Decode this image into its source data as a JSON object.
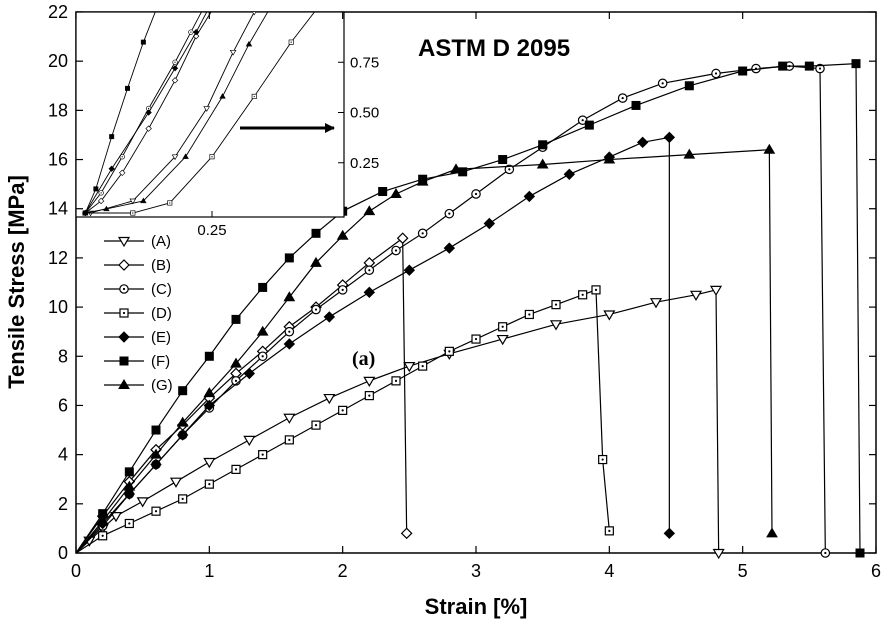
{
  "chart_data": {
    "type": "line",
    "title": "ASTM D 2095",
    "panel_label": "(a)",
    "xlabel": "Strain [%]",
    "ylabel": "Tensile Stress [MPa]",
    "xlim": [
      0,
      6
    ],
    "ylim": [
      0,
      22
    ],
    "xticks": [
      0,
      1,
      2,
      3,
      4,
      5,
      6
    ],
    "yticks": [
      0,
      2,
      4,
      6,
      8,
      10,
      12,
      14,
      16,
      18,
      20,
      22
    ],
    "grid": false,
    "legend_position": "left",
    "series": [
      {
        "name": "(A)",
        "marker": "triangle-down-open",
        "x": [
          0,
          0.1,
          0.2,
          0.3,
          0.5,
          0.75,
          1.0,
          1.3,
          1.6,
          1.9,
          2.2,
          2.5,
          2.8,
          3.2,
          3.6,
          4.0,
          4.35,
          4.65,
          4.8,
          4.82
        ],
        "y": [
          0,
          0.5,
          1.0,
          1.5,
          2.1,
          2.9,
          3.7,
          4.6,
          5.5,
          6.3,
          7.0,
          7.6,
          8.1,
          8.7,
          9.3,
          9.7,
          10.2,
          10.5,
          10.7,
          0
        ]
      },
      {
        "name": "(B)",
        "marker": "diamond-open",
        "x": [
          0,
          0.2,
          0.4,
          0.6,
          0.8,
          1.0,
          1.2,
          1.4,
          1.6,
          1.8,
          2.0,
          2.2,
          2.45,
          2.48
        ],
        "y": [
          0,
          1.5,
          2.9,
          4.2,
          5.2,
          6.3,
          7.3,
          8.2,
          9.2,
          10.0,
          10.9,
          11.8,
          12.8,
          0.8
        ]
      },
      {
        "name": "(C)",
        "marker": "circle-dot-open",
        "x": [
          0,
          0.2,
          0.4,
          0.6,
          0.8,
          1.0,
          1.2,
          1.4,
          1.6,
          1.8,
          2.0,
          2.2,
          2.4,
          2.6,
          2.8,
          3.0,
          3.25,
          3.5,
          3.8,
          4.1,
          4.4,
          4.8,
          5.1,
          5.35,
          5.58,
          5.62
        ],
        "y": [
          0,
          1.1,
          2.4,
          3.6,
          4.8,
          5.9,
          7.0,
          8.0,
          9.0,
          9.9,
          10.7,
          11.5,
          12.3,
          13.0,
          13.8,
          14.6,
          15.6,
          16.5,
          17.6,
          18.5,
          19.1,
          19.5,
          19.7,
          19.8,
          19.7,
          0
        ]
      },
      {
        "name": "(D)",
        "marker": "square-dot-open",
        "x": [
          0,
          0.2,
          0.4,
          0.6,
          0.8,
          1.0,
          1.2,
          1.4,
          1.6,
          1.8,
          2.0,
          2.2,
          2.4,
          2.6,
          2.8,
          3.0,
          3.2,
          3.4,
          3.6,
          3.8,
          3.9,
          3.95,
          4.0
        ],
        "y": [
          0,
          0.7,
          1.2,
          1.7,
          2.2,
          2.8,
          3.4,
          4.0,
          4.6,
          5.2,
          5.8,
          6.4,
          7.0,
          7.6,
          8.2,
          8.7,
          9.2,
          9.7,
          10.1,
          10.5,
          10.7,
          3.8,
          0.9
        ]
      },
      {
        "name": "(E)",
        "marker": "diamond-filled",
        "x": [
          0,
          0.2,
          0.4,
          0.6,
          0.8,
          1.0,
          1.3,
          1.6,
          1.9,
          2.2,
          2.5,
          2.8,
          3.1,
          3.4,
          3.7,
          4.0,
          4.25,
          4.45,
          4.45
        ],
        "y": [
          0,
          1.2,
          2.4,
          3.6,
          4.8,
          6.0,
          7.3,
          8.5,
          9.6,
          10.6,
          11.5,
          12.4,
          13.4,
          14.5,
          15.4,
          16.1,
          16.7,
          16.9,
          0.8
        ]
      },
      {
        "name": "(F)",
        "marker": "square-filled",
        "x": [
          0,
          0.2,
          0.4,
          0.6,
          0.8,
          1.0,
          1.2,
          1.4,
          1.6,
          1.8,
          2.0,
          2.3,
          2.6,
          2.9,
          3.2,
          3.5,
          3.85,
          4.2,
          4.6,
          5.0,
          5.3,
          5.5,
          5.85,
          5.88
        ],
        "y": [
          0,
          1.6,
          3.3,
          5.0,
          6.6,
          8.0,
          9.5,
          10.8,
          12.0,
          13.0,
          13.9,
          14.7,
          15.2,
          15.5,
          16.0,
          16.6,
          17.4,
          18.2,
          19.0,
          19.6,
          19.8,
          19.8,
          19.9,
          0
        ]
      },
      {
        "name": "(G)",
        "marker": "triangle-up-filled",
        "x": [
          0,
          0.2,
          0.4,
          0.6,
          0.8,
          1.0,
          1.2,
          1.4,
          1.6,
          1.8,
          2.0,
          2.2,
          2.4,
          2.6,
          2.85,
          3.5,
          4.0,
          4.6,
          5.2,
          5.22
        ],
        "y": [
          0,
          1.3,
          2.7,
          4.0,
          5.3,
          6.5,
          7.7,
          9.0,
          10.4,
          11.8,
          12.9,
          13.9,
          14.6,
          15.1,
          15.6,
          15.8,
          16.0,
          16.2,
          16.4,
          0.8
        ]
      }
    ],
    "inset": {
      "xticks": [
        0.25
      ],
      "yticks": [
        0.25,
        0.5,
        0.75
      ],
      "xlim": [
        0,
        0.5
      ],
      "ylim": [
        0,
        1.0
      ],
      "series": [
        {
          "name": "(A)",
          "x": [
            0.02,
            0.1,
            0.18,
            0.24,
            0.29,
            0.33
          ],
          "y": [
            0,
            0.06,
            0.28,
            0.52,
            0.8,
            1.0
          ]
        },
        {
          "name": "(B)",
          "x": [
            0.01,
            0.04,
            0.08,
            0.13,
            0.18,
            0.22,
            0.26
          ],
          "y": [
            0,
            0.06,
            0.2,
            0.42,
            0.66,
            0.88,
            1.05
          ]
        },
        {
          "name": "(C)",
          "x": [
            0.01,
            0.04,
            0.08,
            0.13,
            0.18,
            0.21,
            0.24
          ],
          "y": [
            0,
            0.1,
            0.28,
            0.52,
            0.75,
            0.9,
            1.05
          ]
        },
        {
          "name": "(D)",
          "x": [
            0.01,
            0.1,
            0.17,
            0.25,
            0.33,
            0.4,
            0.45
          ],
          "y": [
            0,
            0.0,
            0.05,
            0.28,
            0.58,
            0.85,
            1.02
          ]
        },
        {
          "name": "(E)",
          "x": [
            0.01,
            0.06,
            0.13,
            0.18,
            0.22,
            0.25
          ],
          "y": [
            0,
            0.22,
            0.5,
            0.72,
            0.9,
            1.05
          ]
        },
        {
          "name": "(F)",
          "x": [
            0.01,
            0.03,
            0.06,
            0.09,
            0.12,
            0.15
          ],
          "y": [
            0,
            0.12,
            0.38,
            0.62,
            0.85,
            1.05
          ]
        },
        {
          "name": "(G)",
          "x": [
            0.01,
            0.05,
            0.12,
            0.2,
            0.27,
            0.32,
            0.36
          ],
          "y": [
            0,
            0.02,
            0.06,
            0.28,
            0.58,
            0.84,
            1.02
          ]
        }
      ]
    }
  }
}
